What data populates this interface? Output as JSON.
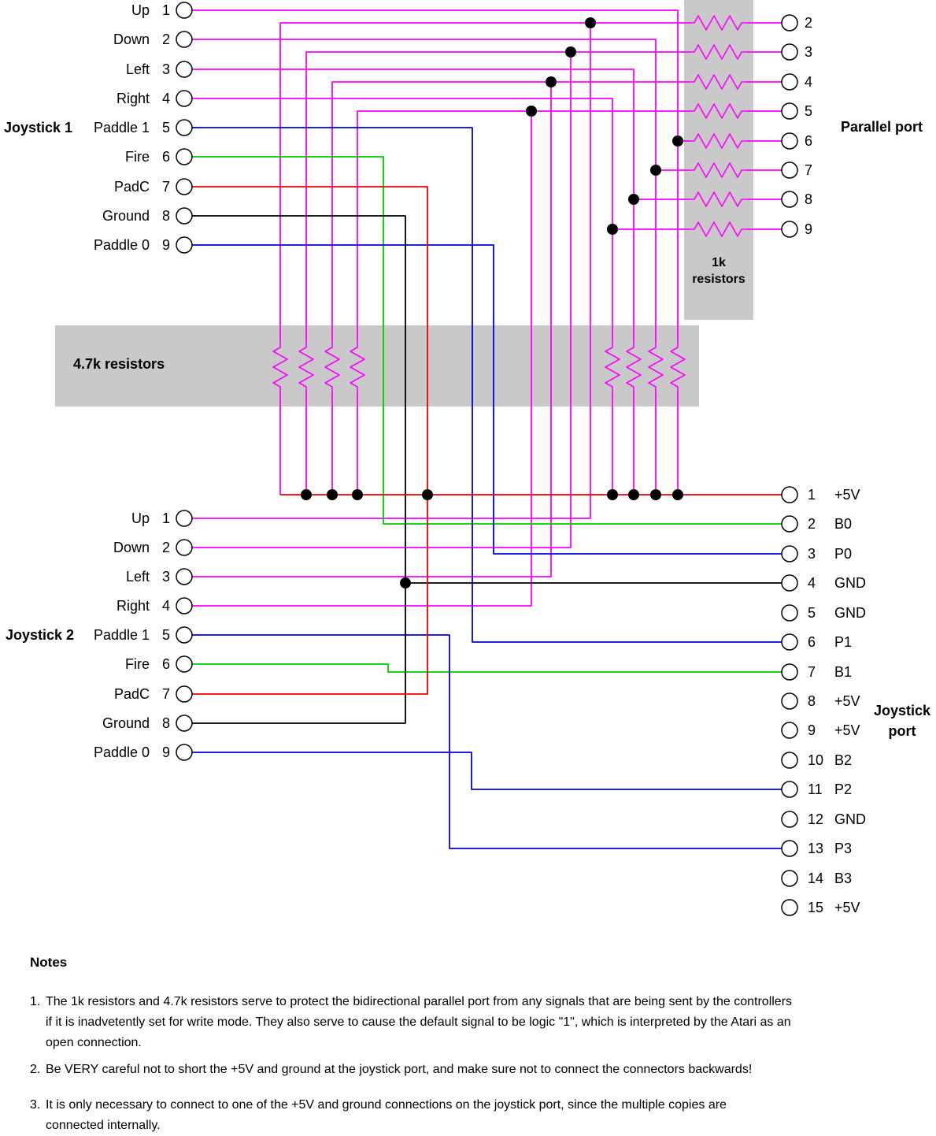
{
  "diagram": {
    "joystick1": {
      "label": "Joystick 1",
      "pins": [
        {
          "num": "1",
          "name": "Up"
        },
        {
          "num": "2",
          "name": "Down"
        },
        {
          "num": "3",
          "name": "Left"
        },
        {
          "num": "4",
          "name": "Right"
        },
        {
          "num": "5",
          "name": "Paddle 1"
        },
        {
          "num": "6",
          "name": "Fire"
        },
        {
          "num": "7",
          "name": "PadC"
        },
        {
          "num": "8",
          "name": "Ground"
        },
        {
          "num": "9",
          "name": "Paddle 0"
        }
      ]
    },
    "joystick2": {
      "label": "Joystick 2",
      "pins": [
        {
          "num": "1",
          "name": "Up"
        },
        {
          "num": "2",
          "name": "Down"
        },
        {
          "num": "3",
          "name": "Left"
        },
        {
          "num": "4",
          "name": "Right"
        },
        {
          "num": "5",
          "name": "Paddle 1"
        },
        {
          "num": "6",
          "name": "Fire"
        },
        {
          "num": "7",
          "name": "PadC"
        },
        {
          "num": "8",
          "name": "Ground"
        },
        {
          "num": "9",
          "name": "Paddle 0"
        }
      ]
    },
    "parallel_port": {
      "label": "Parallel port",
      "resistor_label": [
        "1k",
        "resistors"
      ],
      "pins": [
        {
          "num": "2"
        },
        {
          "num": "3"
        },
        {
          "num": "4"
        },
        {
          "num": "5"
        },
        {
          "num": "6"
        },
        {
          "num": "7"
        },
        {
          "num": "8"
        },
        {
          "num": "9"
        }
      ]
    },
    "resistor_band": {
      "label": "4.7k resistors"
    },
    "joystick_port": {
      "label": [
        "Joystick",
        "port"
      ],
      "pins": [
        {
          "num": "1",
          "signal": "+5V"
        },
        {
          "num": "2",
          "signal": "B0"
        },
        {
          "num": "3",
          "signal": "P0"
        },
        {
          "num": "4",
          "signal": "GND"
        },
        {
          "num": "5",
          "signal": "GND"
        },
        {
          "num": "6",
          "signal": "P1"
        },
        {
          "num": "7",
          "signal": "B1"
        },
        {
          "num": "8",
          "signal": "+5V"
        },
        {
          "num": "9",
          "signal": "+5V"
        },
        {
          "num": "10",
          "signal": "B2"
        },
        {
          "num": "11",
          "signal": "P2"
        },
        {
          "num": "12",
          "signal": "GND"
        },
        {
          "num": "13",
          "signal": "P3"
        },
        {
          "num": "14",
          "signal": "B3"
        },
        {
          "num": "15",
          "signal": "+5V"
        }
      ]
    }
  },
  "notes": {
    "heading": "Notes",
    "items": [
      {
        "number": "1.",
        "lines": [
          "The 1k resistors and 4.7k resistors serve to protect the bidirectional parallel port from any signals that are being sent by the controllers",
          "if it is inadvetently set for write mode. They also serve to cause the default signal to be logic \"1\", which is interpreted by the Atari as an",
          "open connection."
        ]
      },
      {
        "number": "2.",
        "lines": [
          "Be VERY careful not to short the +5V and ground at the joystick port, and make sure not to connect the connectors backwards!"
        ]
      },
      {
        "number": "3.",
        "lines": [
          "It is only necessary to connect to one of the +5V and ground connections on the joystick port, since the multiple copies are",
          "connected internally."
        ]
      }
    ]
  },
  "colors": {
    "wire-magenta": "#ff00ff",
    "wire-green": "#00cc00",
    "wire-blue": "#0000dd",
    "wire-red": "#ee0000",
    "wire-black": "#000000",
    "resistor-box": "#c9c9c9",
    "background": "#ffffff",
    "text": "#000000"
  }
}
